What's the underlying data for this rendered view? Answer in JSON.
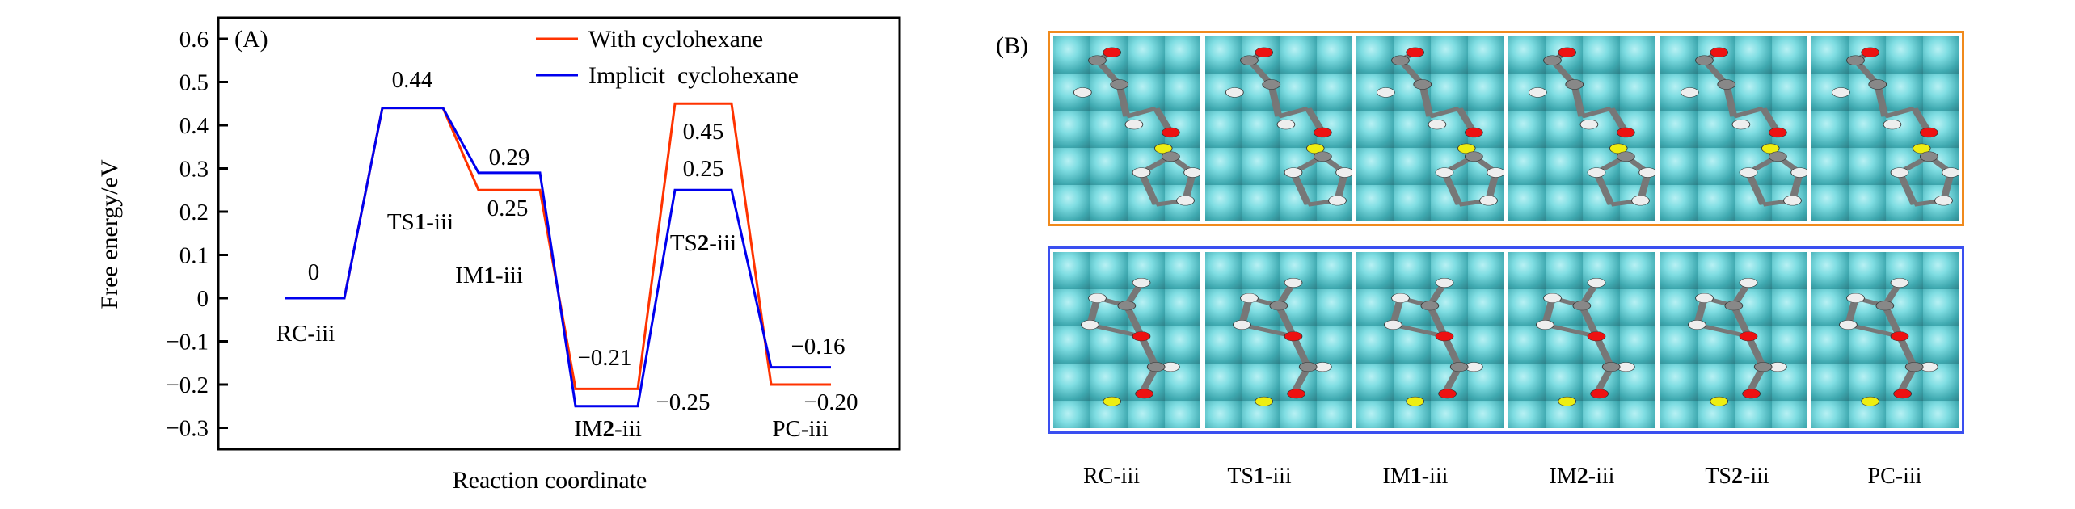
{
  "chart_data": {
    "type": "line",
    "panel_label": "(A)",
    "xlabel": "Reaction coordinate",
    "ylabel": "Free energy/eV",
    "ylim": [
      -0.3,
      0.6
    ],
    "yticks": [
      "0.6",
      "0.5",
      "0.4",
      "0.3",
      "0.2",
      "0.1",
      "0",
      "−0.1",
      "−0.2",
      "−0.3"
    ],
    "ytick_values": [
      0.6,
      0.5,
      0.4,
      0.3,
      0.2,
      0.1,
      0,
      -0.1,
      -0.2,
      -0.3
    ],
    "grid": false,
    "legend_position": "top-right",
    "categories": [
      {
        "pre": "RC-iii",
        "num": "",
        "post": ""
      },
      {
        "pre": "TS",
        "num": "1",
        "post": "-iii"
      },
      {
        "pre": "IM",
        "num": "1",
        "post": "-iii"
      },
      {
        "pre": "IM",
        "num": "2",
        "post": "-iii"
      },
      {
        "pre": "TS",
        "num": "2",
        "post": "-iii"
      },
      {
        "pre": "PC-iii",
        "num": "",
        "post": ""
      }
    ],
    "series": [
      {
        "name": "With cyclohexane",
        "color": "#ff3300",
        "values": [
          0,
          0.44,
          0.25,
          -0.21,
          0.45,
          -0.2
        ]
      },
      {
        "name": "Implicit  cyclohexane",
        "color": "#0000ee",
        "values": [
          0,
          0.44,
          0.29,
          -0.25,
          0.25,
          -0.16
        ]
      }
    ],
    "data_labels": [
      "0",
      "0.44",
      "0.29",
      "0.25",
      "−0.21",
      "−0.25",
      "0.45",
      "0.25",
      "−0.16",
      "−0.20"
    ]
  },
  "panel_b": {
    "label": "(B)",
    "rows": [
      {
        "condition": "With cyclohexane",
        "border_color": "#f08a1c"
      },
      {
        "condition": "Implicit cyclohexane",
        "border_color": "#3a4ff0"
      }
    ],
    "columns": [
      {
        "pre": "RC-iii",
        "num": "",
        "post": ""
      },
      {
        "pre": "TS",
        "num": "1",
        "post": "-iii"
      },
      {
        "pre": "IM",
        "num": "1",
        "post": "-iii"
      },
      {
        "pre": "IM",
        "num": "2",
        "post": "-iii"
      },
      {
        "pre": "TS",
        "num": "2",
        "post": "-iii"
      },
      {
        "pre": "PC-iii",
        "num": "",
        "post": ""
      }
    ]
  }
}
